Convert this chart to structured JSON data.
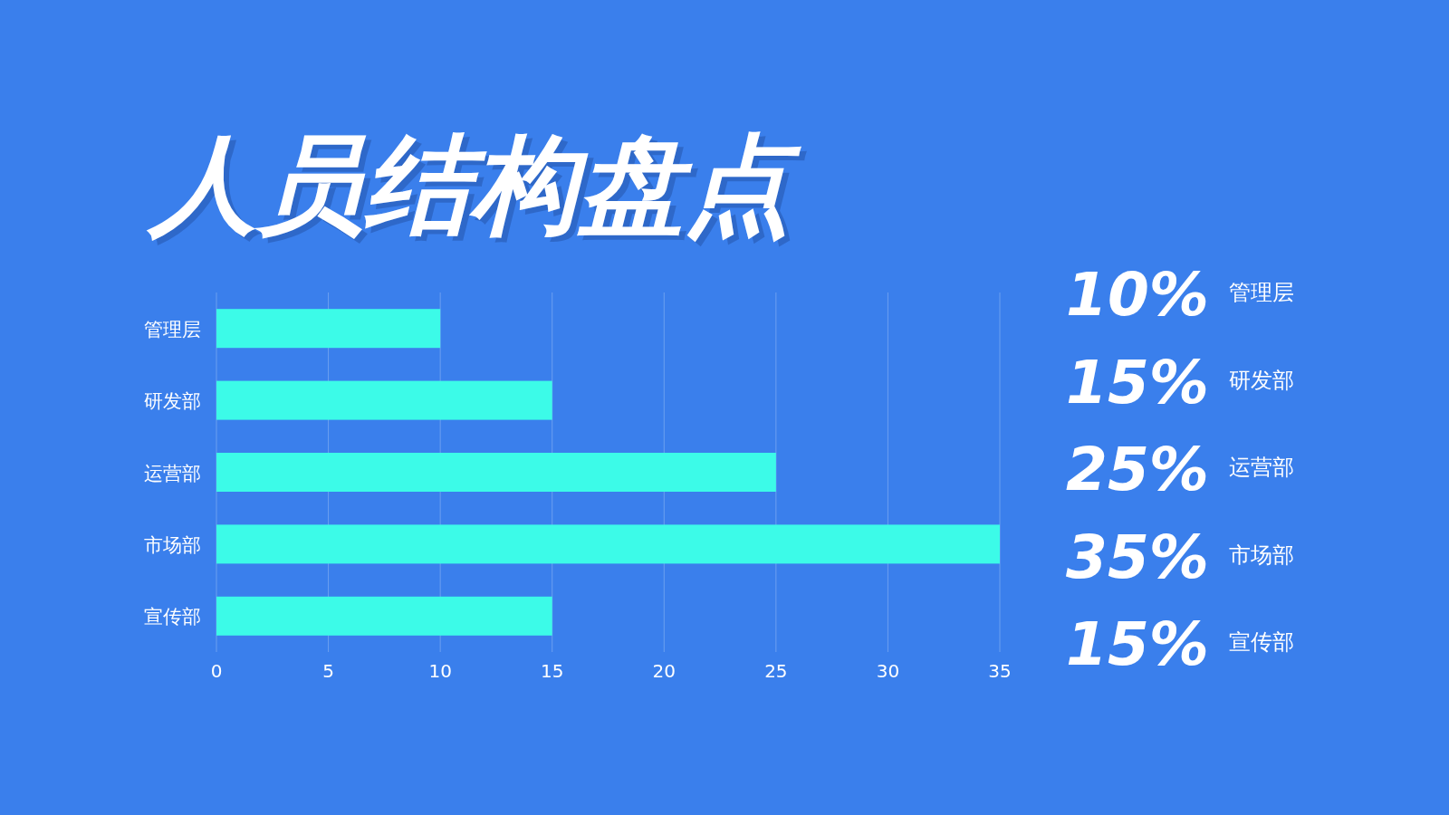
{
  "chart_data": {
    "type": "bar",
    "orientation": "horizontal",
    "title": "人员结构盘点",
    "categories": [
      "管理层",
      "研发部",
      "运营部",
      "市场部",
      "宣传部"
    ],
    "values": [
      10,
      15,
      25,
      35,
      15
    ],
    "value_labels": [
      "10%",
      "15%",
      "25%",
      "35%",
      "15%"
    ],
    "color": "#3cfbe8",
    "xlim": [
      0,
      35
    ],
    "xticks": [
      0,
      5,
      10,
      15,
      20,
      25,
      30,
      35
    ],
    "grid": "x"
  }
}
